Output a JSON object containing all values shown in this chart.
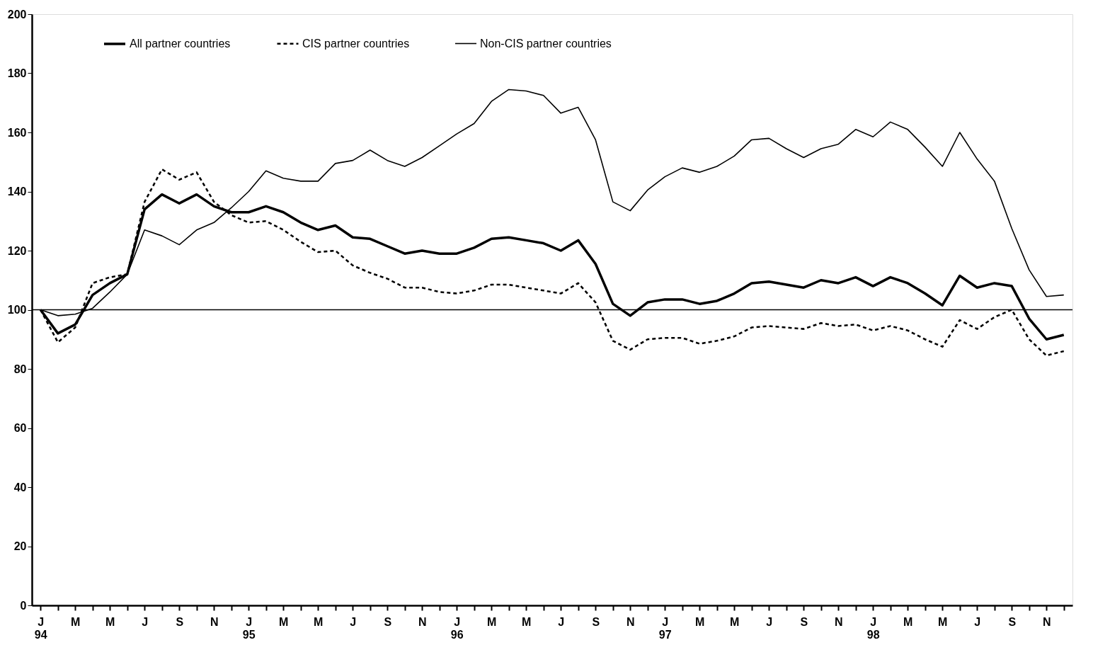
{
  "chart_data": {
    "type": "line",
    "categories": [
      "J\n94",
      null,
      "M",
      null,
      "M",
      null,
      "J",
      null,
      "S",
      null,
      "N",
      null,
      "J\n95",
      null,
      "M",
      null,
      "M",
      null,
      "J",
      null,
      "S",
      null,
      "N",
      null,
      "J\n96",
      null,
      "M",
      null,
      "M",
      null,
      "J",
      null,
      "S",
      null,
      "N",
      null,
      "J\n97",
      null,
      "M",
      null,
      "M",
      null,
      "J",
      null,
      "S",
      null,
      "N",
      null,
      "J\n98",
      null,
      "M",
      null,
      "M",
      null,
      "J",
      null,
      "S",
      null,
      "N",
      null
    ],
    "series": [
      {
        "name": "All partner countries",
        "color": "#000000",
        "line_style": "solid",
        "values": [
          100,
          92,
          95,
          105,
          109,
          112,
          134,
          139,
          136,
          139,
          135,
          133,
          133,
          135,
          133,
          129.5,
          127,
          128.5,
          124.5,
          124,
          121.5,
          119,
          120,
          119,
          119,
          121,
          124,
          124.5,
          123.5,
          122.5,
          120,
          123.5,
          115.5,
          102,
          98,
          102.5,
          103.5,
          103.5,
          102,
          103,
          105.5,
          109,
          109.5,
          108.5,
          107.5,
          110,
          109,
          111,
          108,
          111,
          109,
          105.5,
          101.5,
          111.5,
          107.5,
          109,
          108,
          97,
          90,
          91.5
        ]
      },
      {
        "name": "CIS partner countries",
        "color": "#000000",
        "line_style": "dashed",
        "values": [
          100,
          89,
          94,
          109,
          111,
          112,
          136.5,
          147.5,
          144,
          146.5,
          136.5,
          132,
          129.5,
          130,
          127,
          123,
          119.5,
          120,
          115,
          112.5,
          110.5,
          107.5,
          107.5,
          106,
          105.5,
          106.5,
          108.5,
          108.5,
          107.5,
          106.5,
          105.5,
          109,
          102.5,
          89.5,
          86.5,
          90,
          90.5,
          90.5,
          88.5,
          89.5,
          91,
          94,
          94.5,
          94,
          93.5,
          95.5,
          94.5,
          95,
          93,
          94.5,
          93,
          90,
          87.5,
          96.5,
          93.5,
          97.5,
          100,
          90,
          84.5,
          86
        ]
      },
      {
        "name": "Non-CIS partner countries",
        "color": "#000000",
        "line_style": "solid",
        "values": [
          100,
          98,
          98.5,
          100.5,
          106,
          112,
          127,
          125,
          122,
          127,
          129.5,
          134.5,
          140,
          147,
          144.5,
          143.5,
          143.5,
          149.5,
          150.5,
          154,
          150.5,
          148.5,
          151.5,
          155.5,
          159.5,
          163,
          170.5,
          174.5,
          174,
          172.5,
          166.5,
          168.5,
          157.5,
          136.5,
          133.5,
          140.5,
          145,
          148,
          146.5,
          148.5,
          152,
          157.5,
          158,
          154.5,
          151.5,
          154.5,
          156,
          161,
          158.5,
          163.5,
          161,
          155,
          148.5,
          160,
          151,
          143.5,
          127.5,
          113.5,
          104.5,
          105
        ]
      }
    ],
    "ylim": [
      0,
      200
    ],
    "yticks": [
      0,
      20,
      40,
      60,
      80,
      100,
      120,
      140,
      160,
      180,
      200
    ],
    "ref_lines": [
      {
        "axis": "y",
        "value": 100,
        "color": "#000000"
      }
    ],
    "legend": "top",
    "grid": false
  }
}
